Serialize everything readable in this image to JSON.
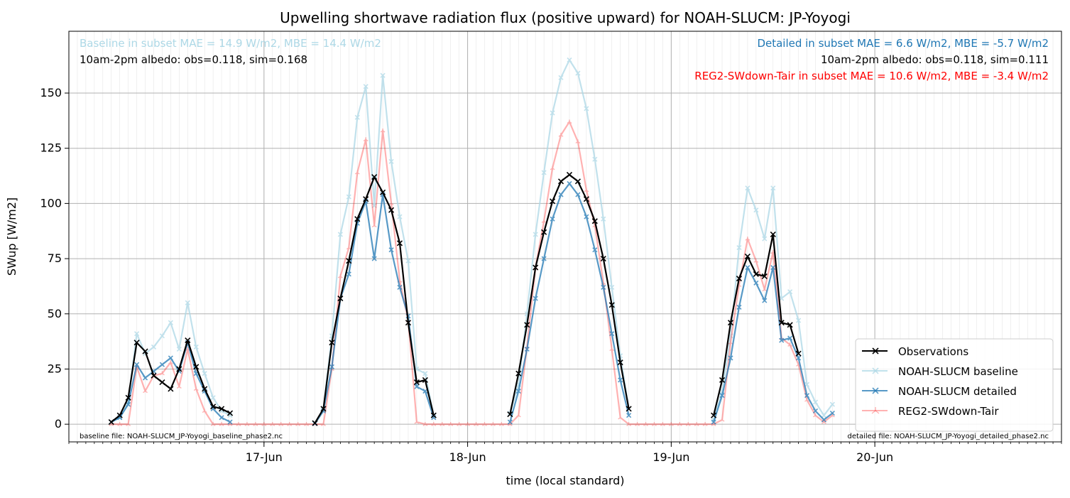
{
  "chart_data": {
    "type": "line",
    "title": "Upwelling shortwave radiation flux (positive upward) for NOAH-SLUCM: JP-Yoyogi",
    "xlabel": "time (local standard)",
    "ylabel": "SWup [W/m2]",
    "x_unit": "hours (local standard time), 0 = 16-Jun 00:00",
    "xlim": [
      1.0,
      118.0
    ],
    "ylim": [
      -8,
      178
    ],
    "yticks": [
      0,
      25,
      50,
      75,
      100,
      125,
      150
    ],
    "xticks": [
      {
        "label": "17-Jun",
        "x": 24
      },
      {
        "label": "18-Jun",
        "x": 48
      },
      {
        "label": "19-Jun",
        "x": 72
      },
      {
        "label": "20-Jun",
        "x": 96
      }
    ],
    "grid": true,
    "legend_position": "lower-right",
    "annotations": {
      "top_left_1": "Baseline in subset MAE = 14.9 W/m2, MBE = 14.4 W/m2",
      "top_left_2": "10am-2pm albedo: obs=0.118, sim=0.168",
      "top_right_1": "Detailed in subset MAE = 6.6 W/m2, MBE = -5.7 W/m2",
      "top_right_2": "10am-2pm albedo: obs=0.118, sim=0.111",
      "top_right_3": "REG2-SWdown-Tair in subset MAE = 10.6 W/m2, MBE = -3.4 W/m2",
      "bottom_left": "baseline file: NOAH-SLUCM_JP-Yoyogi_baseline_phase2.nc",
      "bottom_right": "detailed file: NOAH-SLUCM_JP-Yoyogi_detailed_phase2.nc"
    },
    "colors": {
      "obs": "#000000",
      "baseline": "#add8e6",
      "detailed": "#1f77b4",
      "reg2": "#ff0000"
    },
    "series": [
      {
        "name": "Observations",
        "key": "obs",
        "segments": [
          [
            [
              6,
              1
            ],
            [
              7,
              4
            ],
            [
              8,
              12
            ],
            [
              9,
              37
            ],
            [
              10,
              33
            ],
            [
              11,
              22
            ],
            [
              12,
              19
            ],
            [
              13,
              16
            ],
            [
              14,
              25
            ],
            [
              15,
              38
            ],
            [
              16,
              26
            ],
            [
              17,
              16
            ],
            [
              18,
              8
            ],
            [
              19,
              7
            ],
            [
              20,
              5
            ]
          ],
          [
            [
              30,
              0.5
            ],
            [
              31,
              7
            ],
            [
              32,
              37
            ],
            [
              33,
              57
            ],
            [
              34,
              74
            ],
            [
              35,
              93
            ],
            [
              36,
              102
            ],
            [
              37,
              112
            ],
            [
              38,
              105
            ],
            [
              39,
              97
            ],
            [
              40,
              82
            ],
            [
              41,
              46
            ],
            [
              42,
              19
            ],
            [
              43,
              20
            ],
            [
              44,
              4
            ]
          ],
          [
            [
              53,
              4.5
            ],
            [
              54,
              23
            ],
            [
              55,
              45
            ],
            [
              56,
              71
            ],
            [
              57,
              87
            ],
            [
              58,
              101
            ],
            [
              59,
              110
            ],
            [
              60,
              113
            ],
            [
              61,
              110
            ],
            [
              62,
              102
            ],
            [
              63,
              92
            ],
            [
              64,
              75
            ],
            [
              65,
              54
            ],
            [
              66,
              28
            ],
            [
              67,
              7
            ]
          ],
          [
            [
              77,
              4
            ],
            [
              78,
              20
            ],
            [
              79,
              46
            ],
            [
              80,
              66
            ],
            [
              81,
              76
            ],
            [
              82,
              68
            ],
            [
              83,
              67
            ],
            [
              84,
              86
            ],
            [
              85,
              46
            ],
            [
              86,
              45
            ],
            [
              87,
              32
            ]
          ]
        ]
      },
      {
        "name": "NOAH-SLUCM baseline",
        "key": "baseline",
        "segments": [
          [
            [
              6,
              1
            ],
            [
              7,
              3
            ],
            [
              8,
              10
            ],
            [
              9,
              41
            ],
            [
              10,
              32
            ],
            [
              11,
              35
            ],
            [
              12,
              40
            ],
            [
              13,
              46
            ],
            [
              14,
              34
            ],
            [
              15,
              55
            ],
            [
              16,
              35
            ],
            [
              17,
              23
            ],
            [
              18,
              12
            ],
            [
              19,
              6
            ],
            [
              20,
              4
            ]
          ],
          [
            [
              30,
              0.5
            ],
            [
              31,
              7
            ],
            [
              32,
              40
            ],
            [
              33,
              86
            ],
            [
              34,
              103
            ],
            [
              35,
              139
            ],
            [
              36,
              153
            ],
            [
              37,
              99
            ],
            [
              38,
              158
            ],
            [
              39,
              119
            ],
            [
              40,
              94
            ],
            [
              41,
              74
            ],
            [
              42,
              25
            ],
            [
              43,
              23
            ],
            [
              44,
              4
            ]
          ],
          [
            [
              53,
              5
            ],
            [
              54,
              18
            ],
            [
              55,
              50
            ],
            [
              56,
              86
            ],
            [
              57,
              114
            ],
            [
              58,
              141
            ],
            [
              59,
              157
            ],
            [
              60,
              165
            ],
            [
              61,
              159
            ],
            [
              62,
              143
            ],
            [
              63,
              120
            ],
            [
              64,
              93
            ],
            [
              65,
              62
            ],
            [
              66,
              31
            ],
            [
              67,
              7
            ]
          ],
          [
            [
              77,
              2
            ],
            [
              78,
              15
            ],
            [
              79,
              40
            ],
            [
              80,
              80
            ],
            [
              81,
              107
            ],
            [
              82,
              97
            ],
            [
              83,
              84
            ],
            [
              84,
              107
            ],
            [
              85,
              57
            ],
            [
              86,
              60
            ],
            [
              87,
              47
            ],
            [
              88,
              18
            ],
            [
              89,
              10
            ],
            [
              90,
              4
            ],
            [
              91,
              9
            ]
          ]
        ]
      },
      {
        "name": "NOAH-SLUCM detailed",
        "key": "detailed",
        "segments": [
          [
            [
              6,
              1
            ],
            [
              7,
              3
            ],
            [
              8,
              9
            ],
            [
              9,
              27
            ],
            [
              10,
              21
            ],
            [
              11,
              24
            ],
            [
              12,
              27
            ],
            [
              13,
              30
            ],
            [
              14,
              24
            ],
            [
              15,
              37
            ],
            [
              16,
              23
            ],
            [
              17,
              15
            ],
            [
              18,
              7
            ],
            [
              19,
              3
            ],
            [
              20,
              1
            ]
          ],
          [
            [
              30,
              0.3
            ],
            [
              31,
              6
            ],
            [
              32,
              26
            ],
            [
              33,
              57
            ],
            [
              34,
              68
            ],
            [
              35,
              91
            ],
            [
              36,
              101
            ],
            [
              37,
              75
            ],
            [
              38,
              104
            ],
            [
              39,
              79
            ],
            [
              40,
              62
            ],
            [
              41,
              49
            ],
            [
              42,
              17
            ],
            [
              43,
              15
            ],
            [
              44,
              3
            ]
          ],
          [
            [
              53,
              1
            ],
            [
              54,
              15
            ],
            [
              55,
              34
            ],
            [
              56,
              57
            ],
            [
              57,
              75
            ],
            [
              58,
              93
            ],
            [
              59,
              104
            ],
            [
              60,
              109
            ],
            [
              61,
              104
            ],
            [
              62,
              94
            ],
            [
              63,
              79
            ],
            [
              64,
              62
            ],
            [
              65,
              41
            ],
            [
              66,
              20
            ],
            [
              67,
              4
            ]
          ],
          [
            [
              77,
              1
            ],
            [
              78,
              13
            ],
            [
              79,
              30
            ],
            [
              80,
              53
            ],
            [
              81,
              71
            ],
            [
              82,
              64
            ],
            [
              83,
              56
            ],
            [
              84,
              71
            ],
            [
              85,
              38
            ],
            [
              86,
              39
            ],
            [
              87,
              30
            ],
            [
              88,
              13
            ],
            [
              89,
              6
            ],
            [
              90,
              2
            ],
            [
              91,
              5
            ]
          ]
        ]
      },
      {
        "name": "REG2-SWdown-Tair",
        "key": "reg2",
        "segments": [
          [
            [
              6,
              0
            ],
            [
              7,
              0
            ],
            [
              8,
              0
            ],
            [
              9,
              26
            ],
            [
              10,
              15
            ],
            [
              11,
              22
            ],
            [
              12,
              23
            ],
            [
              13,
              28
            ],
            [
              14,
              17
            ],
            [
              15,
              34
            ],
            [
              16,
              16
            ],
            [
              17,
              6
            ],
            [
              18,
              0
            ],
            [
              19,
              0
            ],
            [
              20,
              0
            ],
            [
              21,
              0
            ],
            [
              22,
              0
            ],
            [
              23,
              0
            ],
            [
              24,
              0
            ],
            [
              25,
              0
            ],
            [
              26,
              0
            ],
            [
              27,
              0
            ],
            [
              28,
              0
            ],
            [
              29,
              0
            ],
            [
              30,
              0
            ],
            [
              31,
              0
            ],
            [
              32,
              25
            ],
            [
              33,
              67
            ],
            [
              34,
              80
            ],
            [
              35,
              114
            ],
            [
              36,
              129
            ],
            [
              37,
              90
            ],
            [
              38,
              133
            ],
            [
              39,
              100
            ],
            [
              40,
              65
            ],
            [
              41,
              47
            ],
            [
              42,
              1
            ],
            [
              43,
              0
            ],
            [
              44,
              0
            ],
            [
              45,
              0
            ],
            [
              46,
              0
            ],
            [
              47,
              0
            ],
            [
              48,
              0
            ],
            [
              49,
              0
            ],
            [
              50,
              0
            ],
            [
              51,
              0
            ],
            [
              52,
              0
            ],
            [
              53,
              0
            ],
            [
              54,
              4
            ],
            [
              55,
              35
            ],
            [
              56,
              71
            ],
            [
              57,
              92
            ],
            [
              58,
              116
            ],
            [
              59,
              131
            ],
            [
              60,
              137
            ],
            [
              61,
              128
            ],
            [
              62,
              106
            ],
            [
              63,
              90
            ],
            [
              64,
              64
            ],
            [
              65,
              34
            ],
            [
              66,
              3
            ],
            [
              67,
              0
            ],
            [
              68,
              0
            ],
            [
              69,
              0
            ],
            [
              70,
              0
            ],
            [
              71,
              0
            ],
            [
              72,
              0
            ],
            [
              73,
              0
            ],
            [
              74,
              0
            ],
            [
              75,
              0
            ],
            [
              76,
              0
            ],
            [
              77,
              0
            ],
            [
              78,
              2
            ],
            [
              79,
              37
            ],
            [
              80,
              63
            ],
            [
              81,
              84
            ],
            [
              82,
              74
            ],
            [
              83,
              61
            ],
            [
              84,
              78
            ],
            [
              85,
              39
            ],
            [
              86,
              36
            ],
            [
              87,
              27
            ],
            [
              88,
              11
            ],
            [
              89,
              4
            ],
            [
              90,
              1
            ],
            [
              91,
              4
            ]
          ]
        ]
      }
    ]
  }
}
